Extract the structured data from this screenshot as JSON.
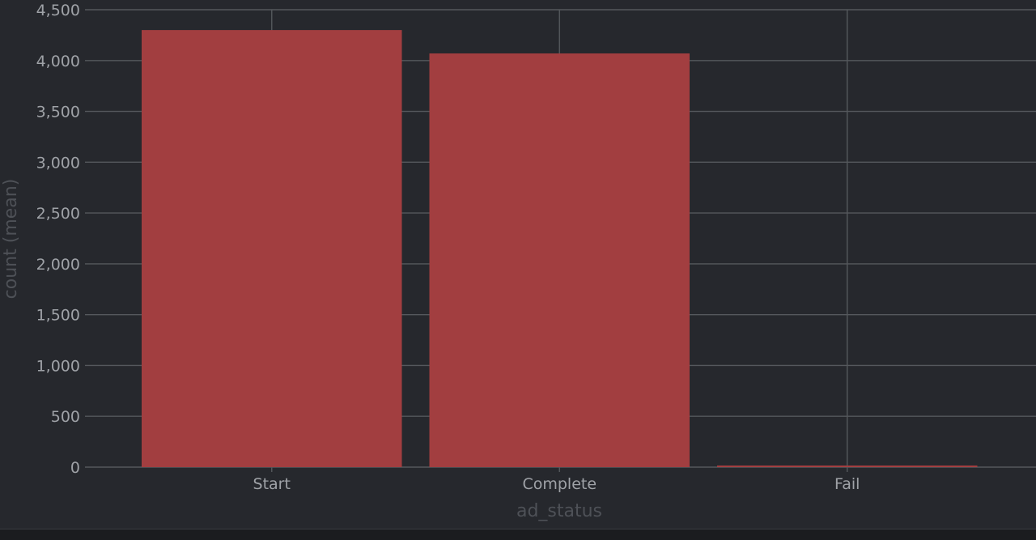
{
  "chart_data": {
    "type": "bar",
    "categories": [
      "Start",
      "Complete",
      "Fail"
    ],
    "values": [
      4300,
      4070,
      8
    ],
    "xlabel": "ad_status",
    "ylabel": "count (mean)",
    "ylim": [
      0,
      4500
    ],
    "yticks": [
      0,
      500,
      1000,
      1500,
      2000,
      2500,
      3000,
      3500,
      4000,
      4500
    ],
    "ytick_labels": [
      "0",
      "500",
      "1,000",
      "1,500",
      "2,000",
      "2,500",
      "3,000",
      "3,500",
      "4,000",
      "4,500"
    ],
    "grid": true,
    "bar_color": "#a23e40",
    "grid_color": "#55585d",
    "background": "#26282d"
  }
}
